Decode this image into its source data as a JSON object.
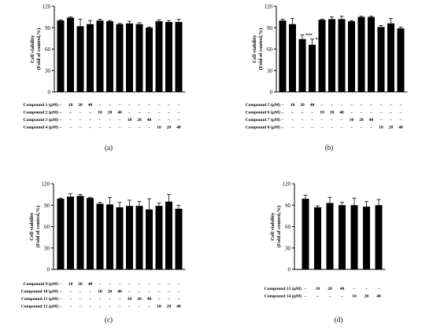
{
  "chart_data": [
    {
      "type": "bar",
      "panel_label": "(a)",
      "ylabel": [
        "Cell viability",
        "(Fold of control,%)"
      ],
      "ylim": [
        0,
        120
      ],
      "yticks": [
        0,
        30,
        60,
        90,
        120
      ],
      "values": [
        100,
        104,
        92,
        95,
        100,
        99,
        95,
        96,
        95,
        90,
        99,
        98,
        98
      ],
      "errors": [
        1,
        1,
        10,
        5,
        2,
        1,
        1,
        3,
        2,
        1,
        2,
        2,
        4
      ],
      "annotations": [
        "",
        "",
        "",
        "",
        "",
        "",
        "",
        "",
        "",
        "",
        "",
        "",
        ""
      ],
      "conditions": [
        {
          "label": "Compound 1 (μM)",
          "values": [
            "–",
            "10",
            "20",
            "40",
            "–",
            "–",
            "–",
            "–",
            "–",
            "–",
            "–",
            "–",
            "–"
          ]
        },
        {
          "label": "Compound 2 (μM)",
          "values": [
            "–",
            "–",
            "–",
            "–",
            "10",
            "20",
            "40",
            "–",
            "–",
            "–",
            "–",
            "–",
            "–"
          ]
        },
        {
          "label": "Compound 3 (μM)",
          "values": [
            "–",
            "–",
            "–",
            "–",
            "–",
            "–",
            "–",
            "10",
            "20",
            "40",
            "–",
            "–",
            "–"
          ]
        },
        {
          "label": "Compound 4 (μM)",
          "values": [
            "–",
            "–",
            "–",
            "–",
            "–",
            "–",
            "–",
            "–",
            "–",
            "–",
            "10",
            "20",
            "40"
          ]
        }
      ]
    },
    {
      "type": "bar",
      "panel_label": "(b)",
      "ylabel": [
        "Cell viability",
        "(Fold of control,%)"
      ],
      "ylim": [
        0,
        120
      ],
      "yticks": [
        0,
        30,
        60,
        90,
        120
      ],
      "values": [
        100,
        95,
        74,
        66,
        101,
        102,
        102,
        99,
        105,
        105,
        91,
        96,
        89
      ],
      "errors": [
        2,
        8,
        6,
        8,
        1,
        3,
        4,
        1,
        1,
        1,
        2,
        7,
        2
      ],
      "annotations": [
        "",
        "",
        "***",
        "***",
        "",
        "",
        "",
        "",
        "",
        "",
        "",
        "",
        ""
      ],
      "conditions": [
        {
          "label": "Compound 5 (μM)",
          "values": [
            "–",
            "10",
            "20",
            "40",
            "–",
            "–",
            "–",
            "–",
            "–",
            "–",
            "–",
            "–",
            "–"
          ]
        },
        {
          "label": "Compound 6 (μM)",
          "values": [
            "–",
            "–",
            "–",
            "–",
            "10",
            "20",
            "40",
            "–",
            "–",
            "–",
            "–",
            "–",
            "–"
          ]
        },
        {
          "label": "Compound 7 (μM)",
          "values": [
            "–",
            "–",
            "–",
            "–",
            "–",
            "–",
            "–",
            "10",
            "20",
            "40",
            "–",
            "–",
            "–"
          ]
        },
        {
          "label": "Compound 8 (μM)",
          "values": [
            "–",
            "–",
            "–",
            "–",
            "–",
            "–",
            "–",
            "–",
            "–",
            "–",
            "10",
            "20",
            "40"
          ]
        }
      ]
    },
    {
      "type": "bar",
      "panel_label": "(c)",
      "ylabel": [
        "Cell viability",
        "(Fold of control,%)"
      ],
      "ylim": [
        0,
        120
      ],
      "yticks": [
        0,
        30,
        60,
        90,
        120
      ],
      "values": [
        99,
        102,
        103,
        100,
        92,
        91,
        87,
        89,
        89,
        84,
        89,
        95,
        85
      ],
      "errors": [
        1,
        4,
        2,
        1,
        2,
        10,
        7,
        8,
        6,
        15,
        4,
        10,
        5
      ],
      "annotations": [
        "",
        "",
        "",
        "",
        "",
        "",
        "",
        "",
        "",
        "",
        "",
        "",
        ""
      ],
      "conditions": [
        {
          "label": "Compound 9 (μM)",
          "values": [
            "–",
            "10",
            "20",
            "40",
            "–",
            "–",
            "–",
            "–",
            "–",
            "–",
            "–",
            "–",
            "–"
          ]
        },
        {
          "label": "Compound 10 (μM)",
          "values": [
            "–",
            "–",
            "–",
            "–",
            "10",
            "20",
            "40",
            "–",
            "–",
            "–",
            "–",
            "–",
            "–"
          ]
        },
        {
          "label": "Compound 11 (μM)",
          "values": [
            "–",
            "–",
            "–",
            "–",
            "–",
            "–",
            "–",
            "10",
            "20",
            "40",
            "–",
            "–",
            "–"
          ]
        },
        {
          "label": "Compound 12 (μM)",
          "values": [
            "–",
            "–",
            "–",
            "–",
            "–",
            "–",
            "–",
            "–",
            "–",
            "–",
            "10",
            "20",
            "40"
          ]
        }
      ]
    },
    {
      "type": "bar",
      "panel_label": "(d)",
      "ylabel": [
        "Cell viability",
        "(Fold of control,%)"
      ],
      "ylim": [
        0,
        120
      ],
      "yticks": [
        0,
        30,
        60,
        90,
        120
      ],
      "values": [
        99,
        87,
        93,
        90,
        90,
        88,
        90
      ],
      "errors": [
        5,
        2,
        8,
        4,
        10,
        7,
        8
      ],
      "annotations": [
        "",
        "",
        "",
        "",
        "",
        "",
        ""
      ],
      "conditions": [
        {
          "label": "Compound 13 (μM)",
          "values": [
            "–",
            "10",
            "20",
            "40",
            "–",
            "–",
            "–"
          ]
        },
        {
          "label": "Compound 14 (μM)",
          "values": [
            "–",
            "–",
            "–",
            "–",
            "10",
            "20",
            "40"
          ]
        }
      ]
    }
  ],
  "colors": {
    "bar": "#000000",
    "axis": "#000000",
    "background": "#ffffff"
  }
}
